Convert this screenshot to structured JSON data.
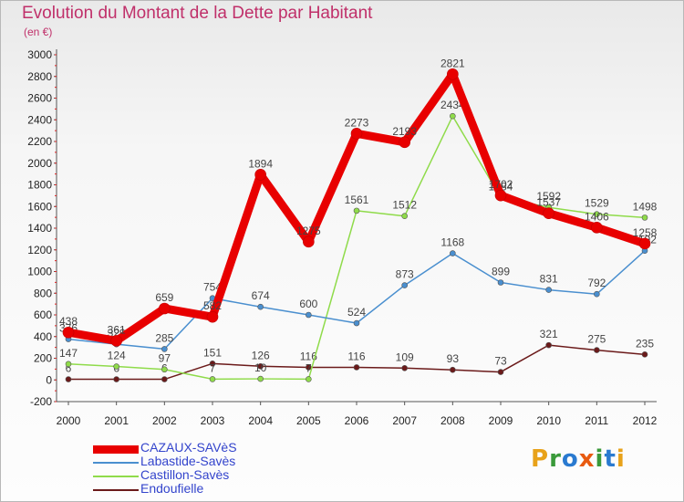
{
  "title": "Evolution du Montant de la Dette par Habitant",
  "unit": "(en €)",
  "logo": {
    "letters": [
      "P",
      "r",
      "o",
      "x",
      "i",
      "t",
      "i"
    ],
    "colors": [
      "#e8a21a",
      "#3a9a3a",
      "#2a7ad0",
      "#e85a10",
      "#3a9a3a",
      "#2a7ad0",
      "#e8a21a"
    ]
  },
  "chart_data": {
    "type": "line",
    "x": [
      "2000",
      "2001",
      "2002",
      "2003",
      "2004",
      "2005",
      "2006",
      "2007",
      "2008",
      "2009",
      "2010",
      "2011",
      "2012"
    ],
    "ylim": [
      -200,
      3000
    ],
    "yticks": [
      "-200",
      "0",
      "200",
      "400",
      "600",
      "800",
      "1000",
      "1200",
      "1400",
      "1600",
      "1800",
      "2000",
      "2200",
      "2400",
      "2600",
      "2800",
      "3000"
    ],
    "grid": false,
    "legend_position": "bottom-left",
    "series": [
      {
        "name": "Endoufielle",
        "color": "#6b1a1a",
        "values": [
          6,
          6,
          6,
          151,
          126,
          116,
          116,
          109,
          93,
          73,
          321,
          275,
          235
        ],
        "labels": [
          "6",
          "6",
          "6",
          "151",
          "126",
          "116",
          "116",
          "109",
          "93",
          "73",
          "321",
          "275",
          "235"
        ]
      },
      {
        "name": "Castillon-Savès",
        "color": "#8fdb4a",
        "values": [
          147,
          124,
          97,
          7,
          10,
          7,
          1561,
          1512,
          2434,
          1684,
          1592,
          1529,
          1498
        ],
        "labels": [
          "147",
          "124",
          "97",
          "7",
          "10",
          "7",
          "1561",
          "1512",
          "2434",
          "1684",
          "1592",
          "1529",
          "1498"
        ]
      },
      {
        "name": "Labastide-Savès",
        "color": "#4a8fcf",
        "values": [
          376,
          329,
          285,
          754,
          674,
          600,
          524,
          873,
          1168,
          899,
          831,
          792,
          1192
        ],
        "labels": [
          "376",
          "329",
          "285",
          "754",
          "674",
          "600",
          "524",
          "873",
          "1168",
          "899",
          "831",
          "792",
          "1192"
        ]
      },
      {
        "name": "CAZAUX-SAVèS",
        "color": "#e80000",
        "values": [
          438,
          361,
          659,
          582,
          1894,
          1275,
          2273,
          2193,
          2821,
          1702,
          1537,
          1406,
          1258
        ],
        "labels": [
          "438",
          "361",
          "659",
          "582",
          "1894",
          "1275",
          "2273",
          "2193",
          "2821",
          "1702",
          "1537",
          "1406",
          "1258"
        ]
      }
    ]
  },
  "legend": [
    {
      "label": "CAZAUX-SAVèS",
      "color": "#e80000",
      "thick": true
    },
    {
      "label": "Labastide-Savès",
      "color": "#4a8fcf",
      "thick": false
    },
    {
      "label": "Castillon-Savès",
      "color": "#8fdb4a",
      "thick": false
    },
    {
      "label": "Endoufielle",
      "color": "#6b1a1a",
      "thick": false
    }
  ]
}
